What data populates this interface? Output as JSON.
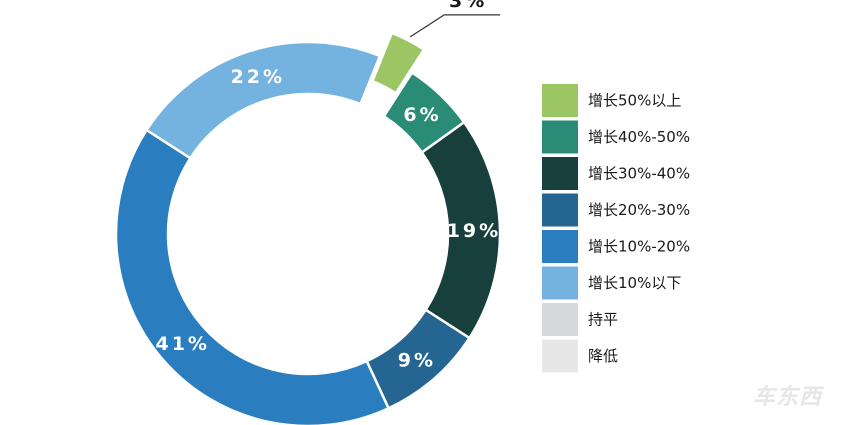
{
  "chart_data": {
    "type": "pie",
    "title": "",
    "series": [
      {
        "name": "增长50%以上",
        "value": 3,
        "label": "3%",
        "color": "#9cc563"
      },
      {
        "name": "增长40%-50%",
        "value": 6,
        "label": "6%",
        "color": "#2a8c77"
      },
      {
        "name": "增长30%-40%",
        "value": 19,
        "label": "19%",
        "color": "#173f3b"
      },
      {
        "name": "增长20%-30%",
        "value": 9,
        "label": "9%",
        "color": "#256591"
      },
      {
        "name": "增长10%-20%",
        "value": 41,
        "label": "41%",
        "color": "#2a7dbf"
      },
      {
        "name": "增长10%以下",
        "value": 22,
        "label": "22%",
        "color": "#74b3e0"
      },
      {
        "name": "持平",
        "value": 0,
        "label": "",
        "color": "#d5d9da"
      },
      {
        "name": "降低",
        "value": 0,
        "label": "",
        "color": "#e7e7e7"
      }
    ],
    "legend_position": "right"
  },
  "watermark": "车东西"
}
